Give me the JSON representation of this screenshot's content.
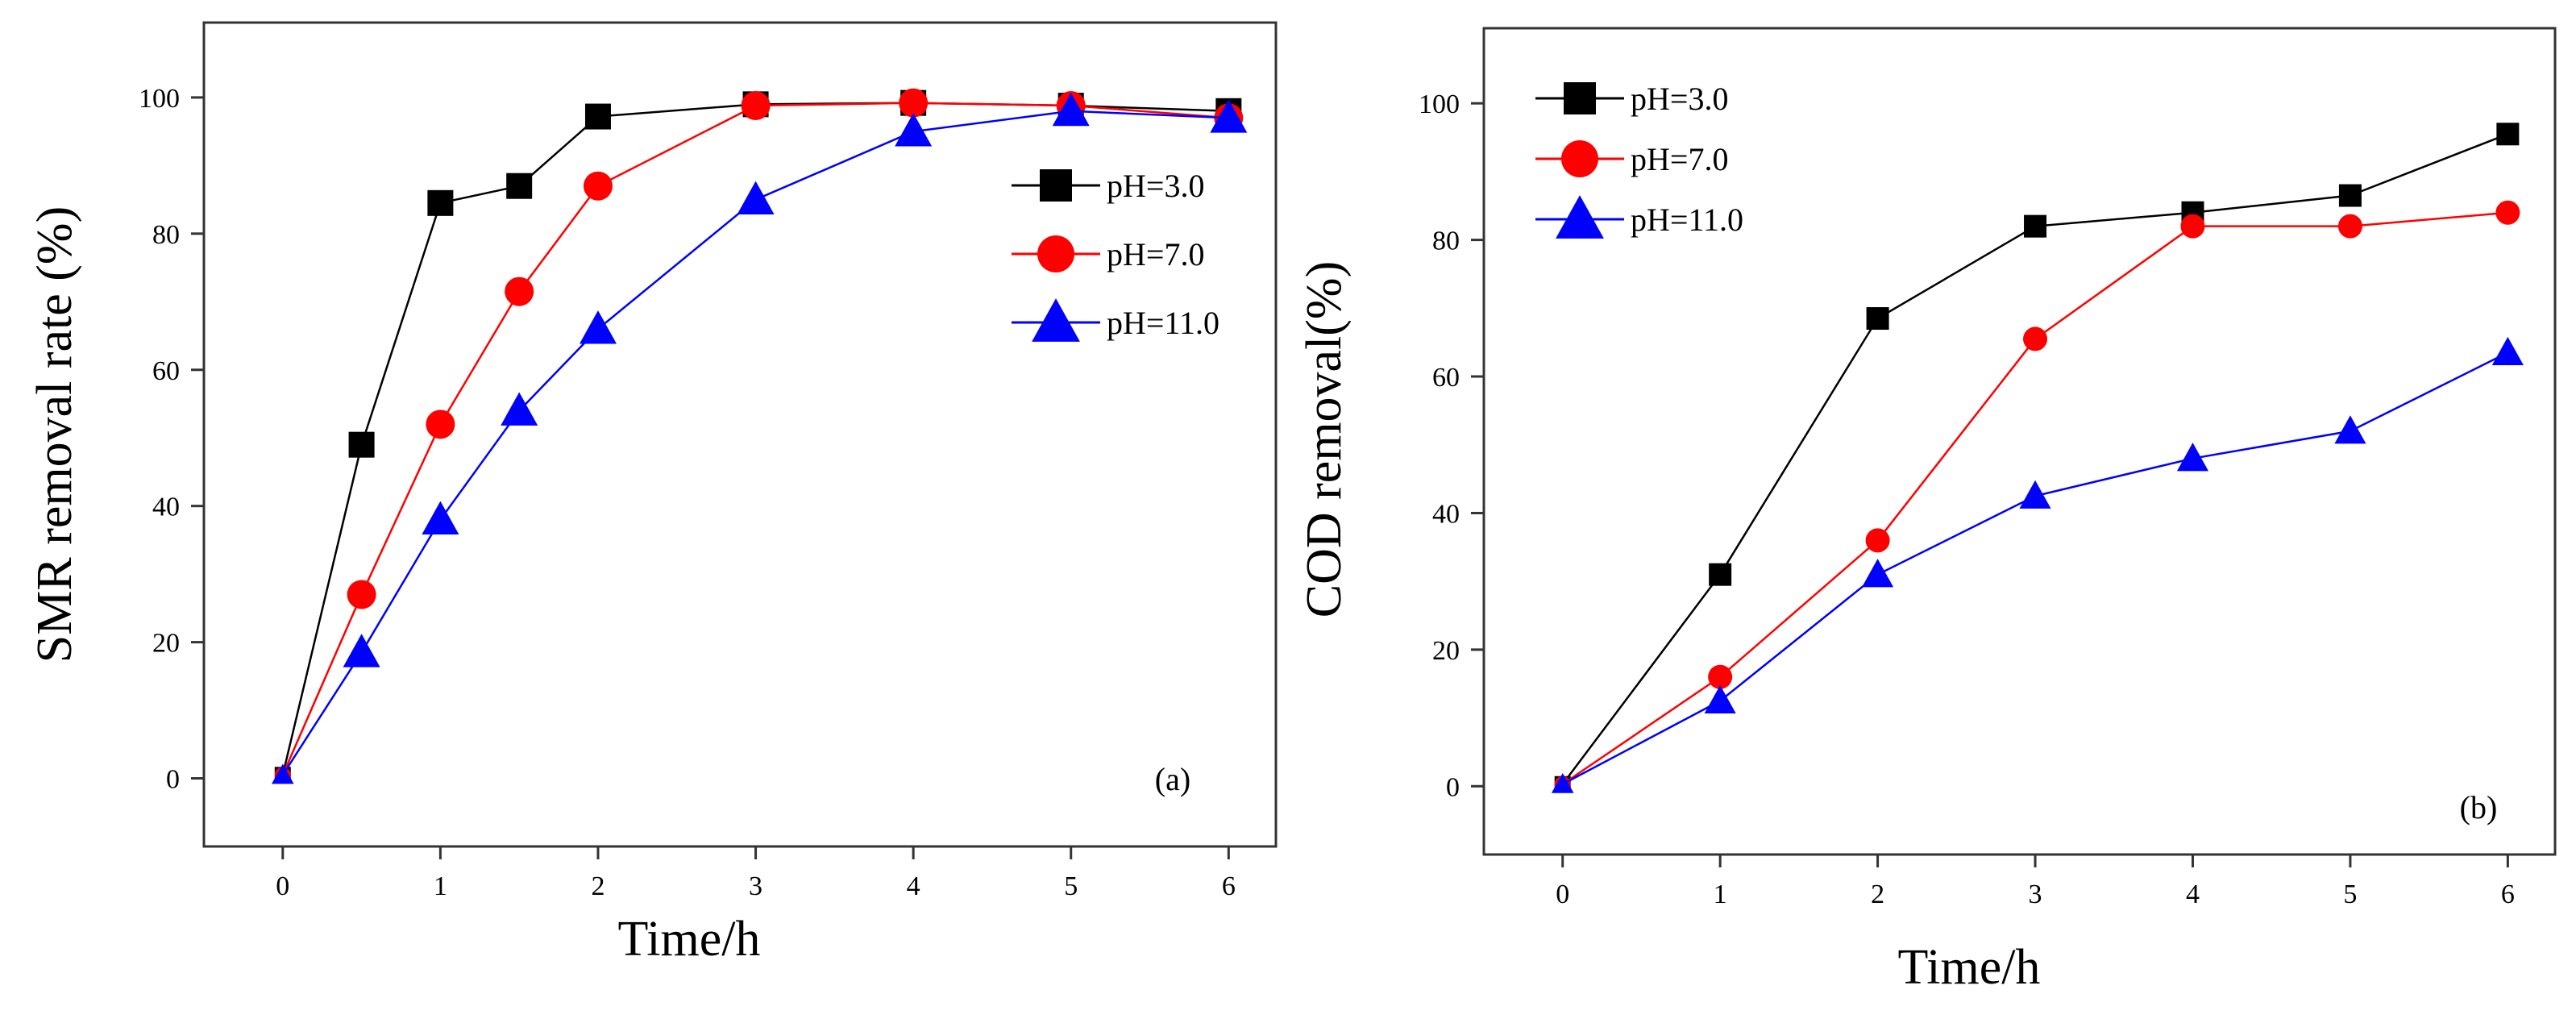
{
  "chart_data": [
    {
      "type": "line",
      "panel_label": "(a)",
      "xlabel": "Time/h",
      "ylabel": "SMR removal rate (%)",
      "xlim": [
        -0.5,
        6.3
      ],
      "ylim": [
        -10,
        111
      ],
      "xticks": [
        0,
        1,
        2,
        3,
        4,
        5,
        6
      ],
      "yticks": [
        0,
        20,
        40,
        60,
        80,
        100
      ],
      "legend_position": "right-middle",
      "series": [
        {
          "name": "pH=3.0",
          "color": "#000000",
          "marker": "square",
          "x": [
            0,
            0.5,
            1,
            1.5,
            2,
            3,
            4,
            5,
            6
          ],
          "values": [
            0.5,
            49,
            84.5,
            87,
            97.2,
            99,
            99.2,
            98.8,
            98
          ]
        },
        {
          "name": "pH=7.0",
          "color": "#ff0000",
          "marker": "circle",
          "x": [
            0,
            0.5,
            1,
            1.5,
            2,
            3,
            4,
            5,
            6
          ],
          "values": [
            0.5,
            27,
            52,
            71.5,
            87,
            98.8,
            99.2,
            98.8,
            97
          ]
        },
        {
          "name": "pH=11.0",
          "color": "#0000ff",
          "marker": "triangle",
          "x": [
            0,
            0.5,
            1,
            1.5,
            2,
            3,
            4,
            5,
            6
          ],
          "values": [
            0.5,
            18.5,
            38,
            54,
            66,
            85,
            95,
            98,
            97
          ]
        }
      ]
    },
    {
      "type": "line",
      "panel_label": "(b)",
      "xlabel": "Time/h",
      "ylabel": "COD removal(%)",
      "xlim": [
        -0.5,
        6.3
      ],
      "ylim": [
        -10,
        111
      ],
      "xticks": [
        0,
        1,
        2,
        3,
        4,
        5,
        6
      ],
      "yticks": [
        0,
        20,
        40,
        60,
        80,
        100
      ],
      "legend_position": "top-left",
      "series": [
        {
          "name": "pH=3.0",
          "color": "#000000",
          "marker": "square",
          "x": [
            0,
            1,
            2,
            3,
            4,
            5,
            6
          ],
          "values": [
            0.3,
            31,
            68.5,
            82,
            84,
            86.5,
            95.5
          ]
        },
        {
          "name": "pH=7.0",
          "color": "#ff0000",
          "marker": "circle",
          "x": [
            0,
            1,
            2,
            3,
            4,
            5,
            6
          ],
          "values": [
            0.3,
            16,
            36,
            65.5,
            82,
            82,
            84
          ]
        },
        {
          "name": "pH=11.0",
          "color": "#0000ff",
          "marker": "triangle",
          "x": [
            0,
            1,
            2,
            3,
            4,
            5,
            6
          ],
          "values": [
            0.3,
            12.5,
            31,
            42.5,
            48,
            52,
            63.5
          ]
        }
      ]
    }
  ]
}
